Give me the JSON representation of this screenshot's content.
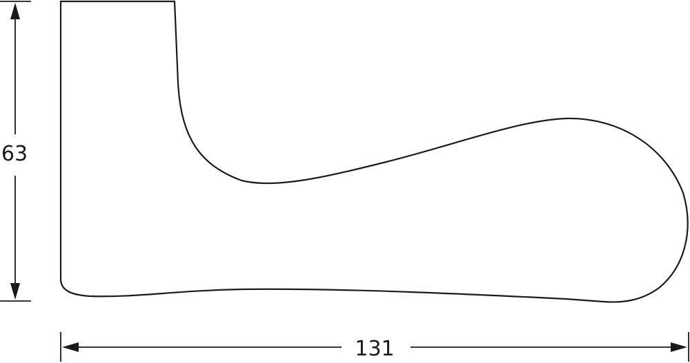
{
  "dimensions": {
    "height_label": "63",
    "width_label": "131"
  },
  "colors": {
    "line": "#1a1a1a",
    "background": "#ffffff"
  }
}
